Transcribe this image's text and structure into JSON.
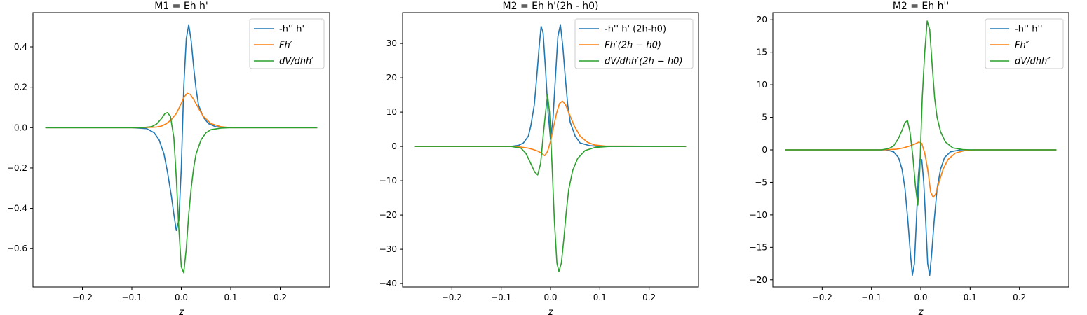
{
  "chart_data": [
    {
      "type": "line",
      "title": "M1 = Eh h'",
      "xlabel": "z",
      "ylabel": "",
      "xlim": [
        -0.3,
        0.3
      ],
      "ylim": [
        -0.79,
        0.57
      ],
      "xticks": [
        -0.2,
        -0.1,
        0.0,
        0.1,
        0.2
      ],
      "xtick_labels": [
        "−0.2",
        "−0.1",
        "0.0",
        "0.1",
        "0.2"
      ],
      "yticks": [
        0.4,
        0.2,
        0.0,
        -0.2,
        -0.4,
        -0.6
      ],
      "ytick_labels": [
        "0.4",
        "0.2",
        "0.0",
        "−0.2",
        "−0.4",
        "−0.6"
      ],
      "legend_position": "top-right",
      "grid": false,
      "series": [
        {
          "name": "-h'' h'",
          "color": "#1f77b4",
          "points": [
            [
              -0.275,
              0.0
            ],
            [
              -0.1,
              0.0
            ],
            [
              -0.07,
              -0.005
            ],
            [
              -0.055,
              -0.025
            ],
            [
              -0.045,
              -0.06
            ],
            [
              -0.035,
              -0.13
            ],
            [
              -0.028,
              -0.22
            ],
            [
              -0.02,
              -0.34
            ],
            [
              -0.015,
              -0.43
            ],
            [
              -0.01,
              -0.51
            ],
            [
              -0.005,
              -0.46
            ],
            [
              0.0,
              -0.2
            ],
            [
              0.005,
              0.2
            ],
            [
              0.01,
              0.44
            ],
            [
              0.015,
              0.51
            ],
            [
              0.02,
              0.43
            ],
            [
              0.025,
              0.3
            ],
            [
              0.03,
              0.19
            ],
            [
              0.035,
              0.11
            ],
            [
              0.045,
              0.05
            ],
            [
              0.055,
              0.02
            ],
            [
              0.07,
              0.004
            ],
            [
              0.1,
              0.0
            ],
            [
              0.275,
              0.0
            ]
          ]
        },
        {
          "name": "Fh′",
          "color": "#ff7f0e",
          "points": [
            [
              -0.275,
              0.0
            ],
            [
              -0.08,
              0.0
            ],
            [
              -0.05,
              0.003
            ],
            [
              -0.04,
              0.008
            ],
            [
              -0.03,
              0.02
            ],
            [
              -0.02,
              0.04
            ],
            [
              -0.01,
              0.07
            ],
            [
              0.0,
              0.12
            ],
            [
              0.005,
              0.15
            ],
            [
              0.012,
              0.17
            ],
            [
              0.018,
              0.165
            ],
            [
              0.025,
              0.14
            ],
            [
              0.035,
              0.095
            ],
            [
              0.045,
              0.055
            ],
            [
              0.06,
              0.02
            ],
            [
              0.08,
              0.005
            ],
            [
              0.1,
              0.0
            ],
            [
              0.275,
              0.0
            ]
          ]
        },
        {
          "name": "dV/dhh′",
          "color": "#2ca02c",
          "points": [
            [
              -0.275,
              0.0
            ],
            [
              -0.08,
              0.0
            ],
            [
              -0.06,
              0.005
            ],
            [
              -0.05,
              0.018
            ],
            [
              -0.04,
              0.045
            ],
            [
              -0.033,
              0.07
            ],
            [
              -0.028,
              0.075
            ],
            [
              -0.022,
              0.055
            ],
            [
              -0.015,
              -0.05
            ],
            [
              -0.01,
              -0.25
            ],
            [
              -0.005,
              -0.5
            ],
            [
              0.0,
              -0.69
            ],
            [
              0.005,
              -0.72
            ],
            [
              0.01,
              -0.6
            ],
            [
              0.015,
              -0.43
            ],
            [
              0.02,
              -0.3
            ],
            [
              0.025,
              -0.2
            ],
            [
              0.03,
              -0.13
            ],
            [
              0.04,
              -0.06
            ],
            [
              0.05,
              -0.025
            ],
            [
              0.06,
              -0.01
            ],
            [
              0.08,
              -0.002
            ],
            [
              0.1,
              0.0
            ],
            [
              0.275,
              0.0
            ]
          ]
        }
      ]
    },
    {
      "type": "line",
      "title": "M2 = Eh h'(2h - h0)",
      "xlabel": "z",
      "ylabel": "",
      "xlim": [
        -0.3,
        0.3
      ],
      "ylim": [
        -41,
        39
      ],
      "xticks": [
        -0.2,
        -0.1,
        0.0,
        0.1,
        0.2
      ],
      "xtick_labels": [
        "−0.2",
        "−0.1",
        "0.0",
        "0.1",
        "0.2"
      ],
      "yticks": [
        30,
        20,
        10,
        0,
        -10,
        -20,
        -30,
        -40
      ],
      "ytick_labels": [
        "30",
        "20",
        "10",
        "0",
        "−10",
        "−20",
        "−30",
        "−40"
      ],
      "legend_position": "top-right",
      "grid": false,
      "series": [
        {
          "name": "-h'' h' (2h-h0)",
          "color": "#1f77b4",
          "points": [
            [
              -0.275,
              0.0
            ],
            [
              -0.08,
              0.0
            ],
            [
              -0.065,
              0.3
            ],
            [
              -0.055,
              1.0
            ],
            [
              -0.045,
              3.0
            ],
            [
              -0.04,
              6.0
            ],
            [
              -0.033,
              12.0
            ],
            [
              -0.028,
              20.0
            ],
            [
              -0.023,
              29.0
            ],
            [
              -0.019,
              35.0
            ],
            [
              -0.015,
              33.0
            ],
            [
              -0.01,
              22.0
            ],
            [
              -0.005,
              10.0
            ],
            [
              0.0,
              2.0
            ],
            [
              0.005,
              8.0
            ],
            [
              0.01,
              20.0
            ],
            [
              0.015,
              32.0
            ],
            [
              0.02,
              35.5
            ],
            [
              0.025,
              29.0
            ],
            [
              0.03,
              20.0
            ],
            [
              0.035,
              12.0
            ],
            [
              0.04,
              7.0
            ],
            [
              0.05,
              3.0
            ],
            [
              0.06,
              1.0
            ],
            [
              0.08,
              0.2
            ],
            [
              0.1,
              0.0
            ],
            [
              0.275,
              0.0
            ]
          ]
        },
        {
          "name": "Fh′(2h − h0)",
          "color": "#ff7f0e",
          "points": [
            [
              -0.275,
              0.0
            ],
            [
              -0.08,
              0.0
            ],
            [
              -0.06,
              -0.2
            ],
            [
              -0.045,
              -0.5
            ],
            [
              -0.035,
              -0.9
            ],
            [
              -0.025,
              -1.4
            ],
            [
              -0.018,
              -2.0
            ],
            [
              -0.012,
              -2.7
            ],
            [
              -0.006,
              -1.5
            ],
            [
              0.0,
              1.5
            ],
            [
              0.006,
              5.5
            ],
            [
              0.012,
              9.5
            ],
            [
              0.018,
              12.5
            ],
            [
              0.024,
              13.2
            ],
            [
              0.03,
              12.3
            ],
            [
              0.038,
              9.5
            ],
            [
              0.048,
              6.0
            ],
            [
              0.06,
              3.0
            ],
            [
              0.075,
              1.2
            ],
            [
              0.09,
              0.4
            ],
            [
              0.11,
              0.1
            ],
            [
              0.275,
              0.0
            ]
          ]
        },
        {
          "name": "dV/dhh′(2h − h0)",
          "color": "#2ca02c",
          "points": [
            [
              -0.275,
              0.0
            ],
            [
              -0.08,
              0.0
            ],
            [
              -0.06,
              -0.5
            ],
            [
              -0.05,
              -2.0
            ],
            [
              -0.04,
              -5.0
            ],
            [
              -0.032,
              -7.5
            ],
            [
              -0.026,
              -8.3
            ],
            [
              -0.02,
              -5.0
            ],
            [
              -0.015,
              3.0
            ],
            [
              -0.01,
              10.0
            ],
            [
              -0.006,
              15.0
            ],
            [
              -0.002,
              10.0
            ],
            [
              0.003,
              -5.0
            ],
            [
              0.008,
              -22.0
            ],
            [
              0.013,
              -34.0
            ],
            [
              0.017,
              -36.5
            ],
            [
              0.022,
              -34.0
            ],
            [
              0.027,
              -27.0
            ],
            [
              0.032,
              -19.0
            ],
            [
              0.037,
              -12.5
            ],
            [
              0.045,
              -7.0
            ],
            [
              0.055,
              -3.5
            ],
            [
              0.07,
              -1.2
            ],
            [
              0.09,
              -0.3
            ],
            [
              0.12,
              0.0
            ],
            [
              0.275,
              0.0
            ]
          ]
        }
      ]
    },
    {
      "type": "line",
      "title": "M2 = Eh h''",
      "xlabel": "z",
      "ylabel": "",
      "xlim": [
        -0.3,
        0.3
      ],
      "ylim": [
        -21.1,
        21.1
      ],
      "xticks": [
        -0.2,
        -0.1,
        0.0,
        0.1,
        0.2
      ],
      "xtick_labels": [
        "−0.2",
        "−0.1",
        "0.0",
        "0.1",
        "0.2"
      ],
      "yticks": [
        20,
        15,
        10,
        5,
        0,
        -5,
        -10,
        -15,
        -20
      ],
      "ytick_labels": [
        "20",
        "15",
        "10",
        "5",
        "0",
        "−5",
        "−10",
        "−15",
        "−20"
      ],
      "legend_position": "top-right",
      "grid": false,
      "series": [
        {
          "name": "-h'' h''",
          "color": "#1f77b4",
          "points": [
            [
              -0.275,
              0.0
            ],
            [
              -0.07,
              0.0
            ],
            [
              -0.055,
              -0.3
            ],
            [
              -0.045,
              -1.2
            ],
            [
              -0.038,
              -3.0
            ],
            [
              -0.032,
              -6.0
            ],
            [
              -0.026,
              -11.0
            ],
            [
              -0.021,
              -16.0
            ],
            [
              -0.017,
              -19.3
            ],
            [
              -0.013,
              -17.5
            ],
            [
              -0.009,
              -11.0
            ],
            [
              -0.005,
              -4.0
            ],
            [
              -0.002,
              -1.5
            ],
            [
              0.002,
              -1.5
            ],
            [
              0.006,
              -5.0
            ],
            [
              0.01,
              -11.0
            ],
            [
              0.014,
              -17.5
            ],
            [
              0.018,
              -19.3
            ],
            [
              0.022,
              -16.0
            ],
            [
              0.027,
              -11.0
            ],
            [
              0.033,
              -6.0
            ],
            [
              0.04,
              -3.0
            ],
            [
              0.048,
              -1.2
            ],
            [
              0.06,
              -0.3
            ],
            [
              0.08,
              0.0
            ],
            [
              0.275,
              0.0
            ]
          ]
        },
        {
          "name": "Fh″",
          "color": "#ff7f0e",
          "points": [
            [
              -0.275,
              0.0
            ],
            [
              -0.08,
              0.0
            ],
            [
              -0.05,
              0.1
            ],
            [
              -0.035,
              0.3
            ],
            [
              -0.022,
              0.6
            ],
            [
              -0.012,
              0.9
            ],
            [
              -0.004,
              1.2
            ],
            [
              0.002,
              1.0
            ],
            [
              0.008,
              -0.5
            ],
            [
              0.014,
              -3.0
            ],
            [
              0.02,
              -6.5
            ],
            [
              0.025,
              -7.3
            ],
            [
              0.03,
              -6.8
            ],
            [
              0.037,
              -5.0
            ],
            [
              0.045,
              -3.0
            ],
            [
              0.055,
              -1.5
            ],
            [
              0.07,
              -0.5
            ],
            [
              0.09,
              -0.1
            ],
            [
              0.11,
              0.0
            ],
            [
              0.275,
              0.0
            ]
          ]
        },
        {
          "name": "dV/dhh″",
          "color": "#2ca02c",
          "points": [
            [
              -0.275,
              0.0
            ],
            [
              -0.08,
              0.0
            ],
            [
              -0.065,
              0.2
            ],
            [
              -0.055,
              0.6
            ],
            [
              -0.045,
              1.8
            ],
            [
              -0.038,
              3.0
            ],
            [
              -0.032,
              4.2
            ],
            [
              -0.027,
              4.5
            ],
            [
              -0.022,
              2.8
            ],
            [
              -0.016,
              -1.0
            ],
            [
              -0.011,
              -5.5
            ],
            [
              -0.006,
              -8.5
            ],
            [
              -0.002,
              -3.0
            ],
            [
              0.003,
              8.0
            ],
            [
              0.008,
              15.0
            ],
            [
              0.013,
              19.8
            ],
            [
              0.018,
              18.5
            ],
            [
              0.023,
              13.0
            ],
            [
              0.028,
              8.0
            ],
            [
              0.033,
              5.0
            ],
            [
              0.04,
              2.8
            ],
            [
              0.05,
              1.2
            ],
            [
              0.065,
              0.3
            ],
            [
              0.085,
              0.05
            ],
            [
              0.1,
              0.0
            ],
            [
              0.275,
              0.0
            ]
          ]
        }
      ]
    }
  ]
}
